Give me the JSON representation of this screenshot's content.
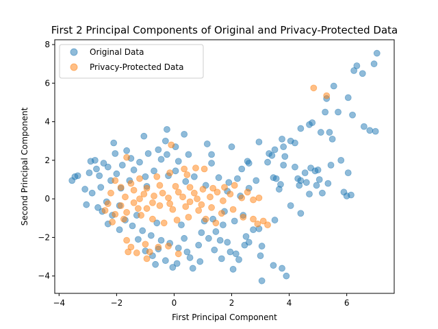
{
  "chart_data": {
    "type": "scatter",
    "title": "First 2 Principal Components of Original and Privacy-Protected Data",
    "xlabel": "First Principal Component",
    "ylabel": "Second Principal Component",
    "xlim": [
      -4.15,
      7.65
    ],
    "ylim": [
      -4.9,
      8.25
    ],
    "xticks": [
      -4,
      -2,
      0,
      2,
      4,
      6
    ],
    "yticks": [
      -4,
      -2,
      0,
      2,
      4,
      6,
      8
    ],
    "grid": false,
    "legend_position": "top-left",
    "series": [
      {
        "name": "Original Data",
        "color": "#1f77b4",
        "points": [
          [
            7.05,
            7.55
          ],
          [
            6.35,
            6.9
          ],
          [
            6.25,
            6.65
          ],
          [
            6.55,
            6.5
          ],
          [
            6.95,
            7.0
          ],
          [
            5.55,
            5.85
          ],
          [
            5.3,
            5.2
          ],
          [
            6.05,
            5.25
          ],
          [
            5.7,
            4.5
          ],
          [
            5.25,
            4.5
          ],
          [
            6.2,
            4.35
          ],
          [
            4.8,
            3.95
          ],
          [
            4.7,
            3.85
          ],
          [
            4.4,
            3.65
          ],
          [
            6.6,
            3.75
          ],
          [
            6.8,
            3.55
          ],
          [
            7.0,
            3.5
          ],
          [
            5.4,
            3.45
          ],
          [
            5.1,
            3.45
          ],
          [
            5.5,
            3.1
          ],
          [
            3.75,
            3.1
          ],
          [
            4.05,
            3.0
          ],
          [
            4.2,
            2.9
          ],
          [
            2.95,
            2.95
          ],
          [
            3.8,
            2.7
          ],
          [
            3.5,
            2.55
          ],
          [
            3.3,
            2.35
          ],
          [
            3.4,
            2.25
          ],
          [
            3.85,
            2.2
          ],
          [
            3.25,
            1.9
          ],
          [
            2.55,
            1.95
          ],
          [
            2.6,
            1.85
          ],
          [
            5.8,
            2.0
          ],
          [
            3.8,
            1.75
          ],
          [
            4.2,
            1.65
          ],
          [
            4.75,
            1.6
          ],
          [
            5.45,
            1.75
          ],
          [
            5.0,
            1.5
          ],
          [
            4.9,
            1.45
          ],
          [
            6.05,
            1.35
          ],
          [
            4.55,
            1.35
          ],
          [
            3.45,
            1.1
          ],
          [
            3.55,
            1.05
          ],
          [
            4.3,
            1.05
          ],
          [
            4.4,
            0.95
          ],
          [
            5.05,
            1.0
          ],
          [
            4.6,
            0.85
          ],
          [
            5.35,
            0.8
          ],
          [
            4.35,
            0.7
          ],
          [
            3.7,
            0.75
          ],
          [
            4.95,
            0.7
          ],
          [
            3.65,
            0.5
          ],
          [
            5.9,
            0.35
          ],
          [
            5.15,
            0.3
          ],
          [
            4.7,
            0.25
          ],
          [
            6.15,
            0.2
          ],
          [
            6.0,
            0.15
          ],
          [
            4.05,
            -0.35
          ],
          [
            4.4,
            -0.75
          ],
          [
            3.5,
            -1.1
          ],
          [
            2.95,
            -1.55
          ],
          [
            2.75,
            -1.6
          ],
          [
            2.5,
            -1.95
          ],
          [
            2.6,
            -2.25
          ],
          [
            3.05,
            -2.45
          ],
          [
            2.45,
            -2.4
          ],
          [
            3.0,
            -2.95
          ],
          [
            3.45,
            -3.45
          ],
          [
            3.75,
            -3.6
          ],
          [
            3.9,
            -4.0
          ],
          [
            3.05,
            -4.25
          ],
          [
            2.15,
            -2.85
          ],
          [
            2.25,
            -3.15
          ],
          [
            2.05,
            -3.65
          ],
          [
            1.65,
            -3.1
          ],
          [
            1.95,
            -2.75
          ],
          [
            -3.55,
            0.95
          ],
          [
            -3.35,
            1.2
          ],
          [
            -3.45,
            1.15
          ],
          [
            -2.9,
            1.95
          ],
          [
            -2.75,
            2.0
          ],
          [
            -2.1,
            2.9
          ],
          [
            -1.05,
            3.25
          ],
          [
            -0.25,
            3.6
          ],
          [
            0.35,
            3.35
          ],
          [
            -0.55,
            2.55
          ],
          [
            -0.3,
            3.0
          ],
          [
            0.05,
            2.7
          ],
          [
            1.15,
            2.85
          ],
          [
            2.0,
            2.7
          ],
          [
            -2.05,
            2.35
          ],
          [
            -1.5,
            2.1
          ],
          [
            -0.9,
            2.35
          ],
          [
            -2.3,
            1.65
          ],
          [
            -1.8,
            1.75
          ],
          [
            -1.2,
            1.9
          ],
          [
            -0.45,
            2.05
          ],
          [
            0.15,
            1.95
          ],
          [
            1.3,
            1.85
          ],
          [
            2.35,
            1.55
          ],
          [
            -2.95,
            1.35
          ],
          [
            -2.6,
            1.2
          ],
          [
            -2.0,
            1.3
          ],
          [
            -1.4,
            1.5
          ],
          [
            -0.7,
            1.45
          ],
          [
            0.05,
            1.45
          ],
          [
            -3.1,
            0.5
          ],
          [
            -2.85,
            0.3
          ],
          [
            -2.55,
            0.6
          ],
          [
            -3.05,
            -0.3
          ],
          [
            -2.65,
            -0.45
          ],
          [
            -2.35,
            -0.15
          ],
          [
            -2.15,
            -0.85
          ],
          [
            -1.9,
            -0.35
          ],
          [
            -1.7,
            -1.1
          ],
          [
            -1.45,
            -1.4
          ],
          [
            -1.1,
            -1.65
          ],
          [
            -0.8,
            -1.9
          ],
          [
            -0.45,
            -2.15
          ],
          [
            -0.15,
            -2.3
          ],
          [
            0.15,
            -2.55
          ],
          [
            0.45,
            -2.75
          ],
          [
            0.85,
            -2.4
          ],
          [
            1.2,
            -2.05
          ],
          [
            1.45,
            -1.7
          ],
          [
            1.7,
            -1.35
          ],
          [
            -0.75,
            -2.95
          ],
          [
            -0.3,
            -3.2
          ],
          [
            0.1,
            -3.35
          ],
          [
            0.55,
            -3.05
          ],
          [
            -0.05,
            -3.55
          ],
          [
            0.65,
            -3.6
          ],
          [
            1.4,
            -2.65
          ],
          [
            1.85,
            -2.25
          ],
          [
            2.1,
            -1.15
          ],
          [
            2.4,
            -0.85
          ],
          [
            2.6,
            0.55
          ],
          [
            2.85,
            0.95
          ],
          [
            2.2,
            1.05
          ],
          [
            1.9,
            0.85
          ],
          [
            -1.55,
            0.95
          ],
          [
            -1.0,
            1.15
          ],
          [
            -0.2,
            1.2
          ],
          [
            0.7,
            1.15
          ],
          [
            1.55,
            1.1
          ],
          [
            -2.3,
            -1.3
          ],
          [
            -1.9,
            -1.6
          ],
          [
            -1.25,
            -2.1
          ],
          [
            -0.55,
            -2.6
          ],
          [
            0.35,
            -2.05
          ],
          [
            0.95,
            -1.75
          ],
          [
            1.35,
            -1.05
          ],
          [
            1.75,
            -0.65
          ],
          [
            -1.65,
            2.5
          ],
          [
            -2.45,
            1.85
          ],
          [
            -2.7,
            1.55
          ],
          [
            -2.2,
            0.95
          ],
          [
            -1.85,
            0.55
          ],
          [
            -0.95,
            0.65
          ],
          [
            0.4,
            0.9
          ],
          [
            1.1,
            0.7
          ],
          [
            1.85,
            0.4
          ],
          [
            2.3,
            0.15
          ],
          [
            -2.5,
            -0.65
          ],
          [
            -1.3,
            -0.85
          ],
          [
            -0.6,
            -1.25
          ],
          [
            0.25,
            -1.35
          ],
          [
            1.05,
            -1.15
          ],
          [
            1.6,
            -2.15
          ],
          [
            0.9,
            -3.25
          ],
          [
            -0.65,
            -3.4
          ],
          [
            -1.0,
            -2.7
          ],
          [
            1.3,
            2.3
          ],
          [
            0.5,
            2.3
          ],
          [
            -0.25,
            2.3
          ]
        ]
      },
      {
        "name": "Privacy-Protected Data",
        "color": "#ff7f0e",
        "points": [
          [
            4.85,
            5.75
          ],
          [
            5.3,
            5.35
          ],
          [
            -1.65,
            2.15
          ],
          [
            -0.1,
            2.8
          ],
          [
            0.75,
            1.6
          ],
          [
            1.05,
            1.55
          ],
          [
            0.45,
            1.25
          ],
          [
            -1.2,
            1.05
          ],
          [
            -2.05,
            0.95
          ],
          [
            -1.85,
            0.6
          ],
          [
            -1.4,
            0.45
          ],
          [
            -0.95,
            0.55
          ],
          [
            -0.5,
            0.7
          ],
          [
            0.05,
            0.65
          ],
          [
            0.55,
            0.6
          ],
          [
            1.0,
            0.5
          ],
          [
            1.5,
            0.35
          ],
          [
            1.95,
            0.25
          ],
          [
            2.35,
            0.05
          ],
          [
            2.75,
            -0.05
          ],
          [
            2.95,
            0.05
          ],
          [
            2.75,
            -1.05
          ],
          [
            2.9,
            -1.3
          ],
          [
            3.1,
            -1.15
          ],
          [
            3.25,
            -1.35
          ],
          [
            2.4,
            -0.95
          ],
          [
            2.05,
            -0.55
          ],
          [
            1.65,
            -0.75
          ],
          [
            1.3,
            -0.45
          ],
          [
            0.85,
            -0.6
          ],
          [
            0.4,
            -0.4
          ],
          [
            -0.05,
            -0.55
          ],
          [
            -0.5,
            -0.35
          ],
          [
            -0.95,
            -0.5
          ],
          [
            -1.4,
            -0.2
          ],
          [
            -1.85,
            -0.35
          ],
          [
            -2.3,
            -0.25
          ],
          [
            -2.2,
            0.3
          ],
          [
            -1.7,
            0.1
          ],
          [
            -1.2,
            0.0
          ],
          [
            -0.7,
            0.15
          ],
          [
            -0.2,
            0.05
          ],
          [
            0.3,
            0.1
          ],
          [
            0.8,
            0.0
          ],
          [
            1.25,
            0.1
          ],
          [
            1.7,
            -0.1
          ],
          [
            -1.65,
            -2.15
          ],
          [
            -1.5,
            -2.5
          ],
          [
            -1.3,
            -2.8
          ],
          [
            -1.0,
            -2.35
          ],
          [
            -0.85,
            -2.75
          ],
          [
            -0.55,
            -2.5
          ],
          [
            -0.2,
            -2.45
          ],
          [
            0.15,
            -2.85
          ],
          [
            -0.95,
            -3.1
          ],
          [
            -1.6,
            -2.75
          ],
          [
            -0.75,
            -1.05
          ],
          [
            -0.35,
            -1.25
          ],
          [
            0.1,
            -1.1
          ],
          [
            0.5,
            -0.95
          ],
          [
            1.1,
            -1.05
          ],
          [
            1.45,
            -1.25
          ],
          [
            -1.15,
            -0.85
          ],
          [
            -1.65,
            -0.7
          ],
          [
            -2.05,
            -0.8
          ],
          [
            -2.15,
            -1.2
          ],
          [
            -1.75,
            -1.05
          ],
          [
            0.35,
            1.55
          ],
          [
            -0.15,
            1.35
          ],
          [
            -0.6,
            1.15
          ],
          [
            2.1,
            0.7
          ],
          [
            1.75,
            0.6
          ],
          [
            2.55,
            0.35
          ],
          [
            -2.4,
            -0.6
          ],
          [
            -0.4,
            0.3
          ],
          [
            0.15,
            0.35
          ],
          [
            0.7,
            0.3
          ],
          [
            1.35,
            0.55
          ],
          [
            -1.05,
            0.25
          ],
          [
            -1.5,
            0.8
          ],
          [
            0.55,
            -0.15
          ],
          [
            0.95,
            -0.3
          ],
          [
            -0.15,
            -0.25
          ],
          [
            -0.75,
            -0.2
          ],
          [
            -1.25,
            -0.5
          ]
        ]
      }
    ]
  }
}
